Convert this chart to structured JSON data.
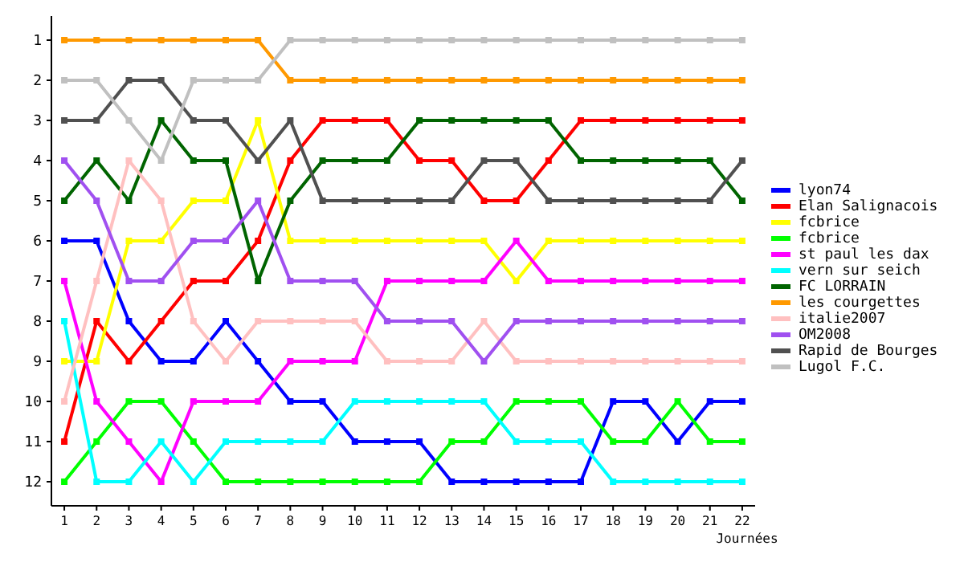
{
  "chart_data": {
    "type": "line",
    "xlabel": "Journées",
    "x": [
      1,
      2,
      3,
      4,
      5,
      6,
      7,
      8,
      9,
      10,
      11,
      12,
      13,
      14,
      15,
      16,
      17,
      18,
      19,
      20,
      21,
      22
    ],
    "xlim": [
      0.6,
      22.4
    ],
    "xticks": [
      1,
      2,
      3,
      4,
      5,
      6,
      7,
      8,
      9,
      10,
      11,
      12,
      13,
      14,
      15,
      16,
      17,
      18,
      19,
      20,
      21,
      22
    ],
    "ylim": [
      12.6,
      0.4
    ],
    "yticks": [
      1,
      2,
      3,
      4,
      5,
      6,
      7,
      8,
      9,
      10,
      11,
      12
    ],
    "grid": false,
    "legend": "right",
    "marker": "square",
    "line_style": "solid",
    "series": [
      {
        "name": "lyon74",
        "color": "#0000ff",
        "values": [
          6,
          6,
          8,
          9,
          9,
          8,
          9,
          10,
          10,
          11,
          11,
          11,
          12,
          12,
          12,
          12,
          12,
          10,
          10,
          11,
          10,
          10
        ]
      },
      {
        "name": "Elan Salignacois",
        "color": "#ff0000",
        "values": [
          11,
          8,
          9,
          8,
          7,
          7,
          6,
          4,
          3,
          3,
          3,
          4,
          4,
          5,
          5,
          4,
          3,
          3,
          3,
          3,
          3,
          3
        ]
      },
      {
        "name": "fcbrice",
        "color": "#ffff00",
        "values": [
          9,
          9,
          6,
          6,
          5,
          5,
          3,
          6,
          6,
          6,
          6,
          6,
          6,
          6,
          7,
          6,
          6,
          6,
          6,
          6,
          6,
          6
        ]
      },
      {
        "name": "fcbrice",
        "color": "#00ff00",
        "values": [
          12,
          11,
          10,
          10,
          11,
          12,
          12,
          12,
          12,
          12,
          12,
          12,
          11,
          11,
          10,
          10,
          10,
          11,
          11,
          10,
          11,
          11
        ]
      },
      {
        "name": "st paul les dax",
        "color": "#ff00ff",
        "values": [
          7,
          10,
          11,
          12,
          10,
          10,
          10,
          9,
          9,
          9,
          7,
          7,
          7,
          7,
          6,
          7,
          7,
          7,
          7,
          7,
          7,
          7
        ]
      },
      {
        "name": "vern sur seich",
        "color": "#00ffff",
        "values": [
          8,
          12,
          12,
          11,
          12,
          11,
          11,
          11,
          11,
          10,
          10,
          10,
          10,
          10,
          11,
          11,
          11,
          12,
          12,
          12,
          12,
          12
        ]
      },
      {
        "name": "FC LORRAIN",
        "color": "#006400",
        "values": [
          5,
          4,
          5,
          3,
          4,
          4,
          7,
          5,
          4,
          4,
          4,
          3,
          3,
          3,
          3,
          3,
          4,
          4,
          4,
          4,
          4,
          5
        ]
      },
      {
        "name": "les courgettes",
        "color": "#ff9900",
        "values": [
          1,
          1,
          1,
          1,
          1,
          1,
          1,
          2,
          2,
          2,
          2,
          2,
          2,
          2,
          2,
          2,
          2,
          2,
          2,
          2,
          2,
          2
        ]
      },
      {
        "name": "italie2007",
        "color": "#ffc0c0",
        "values": [
          10,
          7,
          4,
          5,
          8,
          9,
          8,
          8,
          8,
          8,
          9,
          9,
          9,
          8,
          9,
          9,
          9,
          9,
          9,
          9,
          9,
          9
        ]
      },
      {
        "name": "OM2008",
        "color": "#a050f0",
        "values": [
          4,
          5,
          7,
          7,
          6,
          6,
          5,
          7,
          7,
          7,
          8,
          8,
          8,
          9,
          8,
          8,
          8,
          8,
          8,
          8,
          8,
          8
        ]
      },
      {
        "name": "Rapid de Bourges",
        "color": "#505050",
        "values": [
          3,
          3,
          2,
          2,
          3,
          3,
          4,
          3,
          5,
          5,
          5,
          5,
          5,
          4,
          4,
          5,
          5,
          5,
          5,
          5,
          5,
          4
        ]
      },
      {
        "name": "Lugol F.C.",
        "color": "#c0c0c0",
        "values": [
          2,
          2,
          3,
          4,
          2,
          2,
          2,
          1,
          1,
          1,
          1,
          1,
          1,
          1,
          1,
          1,
          1,
          1,
          1,
          1,
          1,
          1
        ]
      }
    ]
  }
}
